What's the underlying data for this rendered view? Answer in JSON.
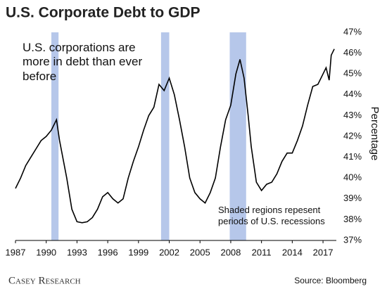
{
  "chart_data": {
    "type": "line",
    "title": "U.S. Corporate Debt to GDP",
    "y_label": "Percentage",
    "annotations": [
      "U.S. corporations are more in debt than ever before",
      "Shaded regions repesent periods of U.S. recessions"
    ],
    "source": "Source: Bloomberg",
    "logo": "Casey Research",
    "color": "#000000",
    "shade_color": "#a9bde6",
    "x": [
      1987,
      1987.5,
      1988,
      1988.5,
      1989,
      1989.5,
      1990,
      1990.5,
      1991,
      1991.3,
      1992,
      1992.5,
      1993,
      1993.5,
      1994,
      1994.5,
      1995,
      1995.5,
      1996,
      1996.5,
      1997,
      1997.5,
      1998,
      1998.5,
      1999,
      1999.5,
      2000,
      2000.5,
      2001,
      2001.5,
      2002,
      2002.5,
      2003,
      2003.5,
      2004,
      2004.5,
      2005,
      2005.5,
      2006,
      2006.5,
      2007,
      2007.5,
      2008,
      2008.5,
      2008.9,
      2009.3,
      2009.7,
      2010,
      2010.5,
      2011,
      2011.5,
      2012,
      2012.5,
      2013,
      2013.5,
      2014,
      2014.5,
      2015,
      2015.5,
      2016,
      2016.5,
      2017,
      2017.3,
      2017.6,
      2017.8,
      2018.1
    ],
    "values": [
      39.5,
      40.0,
      40.6,
      41.0,
      41.4,
      41.8,
      42.0,
      42.3,
      42.8,
      41.8,
      40.0,
      38.5,
      37.9,
      37.85,
      37.9,
      38.1,
      38.5,
      39.1,
      39.3,
      39.0,
      38.8,
      39.0,
      40.0,
      40.8,
      41.5,
      42.3,
      43.0,
      43.4,
      44.5,
      44.2,
      44.8,
      44.0,
      42.8,
      41.5,
      40.0,
      39.3,
      39.0,
      38.8,
      39.3,
      40.0,
      41.5,
      42.8,
      43.5,
      45.0,
      45.7,
      44.8,
      43.0,
      41.5,
      39.8,
      39.4,
      39.7,
      39.8,
      40.2,
      40.8,
      41.2,
      41.2,
      41.8,
      42.5,
      43.5,
      44.4,
      44.5,
      45.0,
      45.3,
      44.7,
      45.9,
      46.2
    ],
    "recessions": [
      [
        1990.5,
        1991.2
      ],
      [
        2001.2,
        2002.0
      ],
      [
        2007.9,
        2009.5
      ]
    ],
    "xlim": [
      1987,
      2018.3
    ],
    "xticks": [
      1987,
      1990,
      1993,
      1996,
      1999,
      2002,
      2005,
      2008,
      2011,
      2014,
      2017
    ],
    "ylim": [
      37,
      47
    ],
    "yticks": [
      {
        "value": 37,
        "label": "37%"
      },
      {
        "value": 38,
        "label": "38%"
      },
      {
        "value": 39,
        "label": "39%"
      },
      {
        "value": 40,
        "label": "40%"
      },
      {
        "value": 41,
        "label": "41%"
      },
      {
        "value": 42,
        "label": "42%"
      },
      {
        "value": 43,
        "label": "43%"
      },
      {
        "value": 44,
        "label": "44%"
      },
      {
        "value": 45,
        "label": "45%"
      },
      {
        "value": 46,
        "label": "46%"
      },
      {
        "value": 47,
        "label": "47%"
      }
    ]
  }
}
